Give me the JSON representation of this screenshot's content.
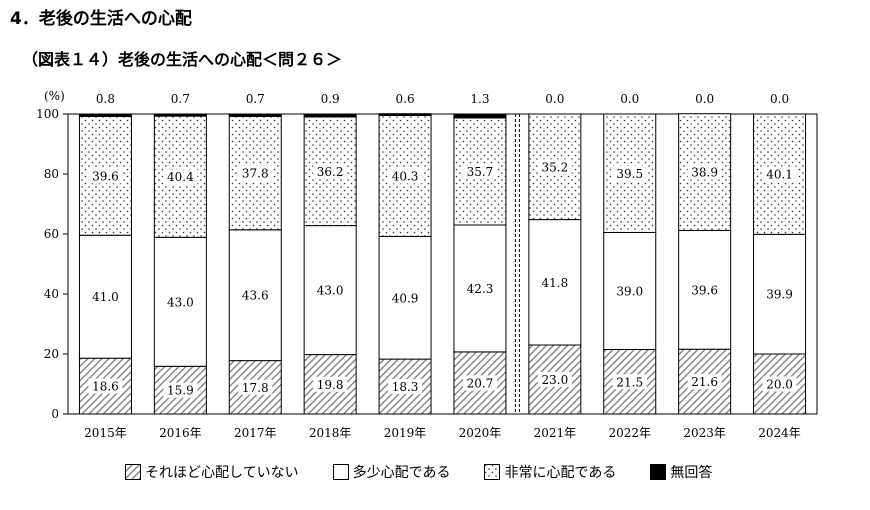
{
  "section_title": "4．老後の生活への心配",
  "chart_title": "（図表１４）老後の生活への心配＜問２６＞",
  "chart_data": {
    "type": "bar",
    "stacked": true,
    "ylabel": "(%)",
    "ylim": [
      0,
      100
    ],
    "yticks": [
      0,
      20,
      40,
      60,
      80,
      100
    ],
    "categories": [
      "2015年",
      "2016年",
      "2017年",
      "2018年",
      "2019年",
      "2020年",
      "2021年",
      "2022年",
      "2023年",
      "2024年"
    ],
    "series": [
      {
        "name": "それほど心配していない",
        "pattern": "hatch",
        "values": [
          18.6,
          15.9,
          17.8,
          19.8,
          18.3,
          20.7,
          23.0,
          21.5,
          21.6,
          20.0
        ]
      },
      {
        "name": "多少心配である",
        "pattern": "white",
        "values": [
          41.0,
          43.0,
          43.6,
          43.0,
          40.9,
          42.3,
          41.8,
          39.0,
          39.6,
          39.9
        ]
      },
      {
        "name": "非常に心配である",
        "pattern": "dots",
        "values": [
          39.6,
          40.4,
          37.8,
          36.2,
          40.3,
          35.7,
          35.2,
          39.5,
          38.9,
          40.1
        ]
      },
      {
        "name": "無回答",
        "pattern": "black",
        "values": [
          0.8,
          0.7,
          0.7,
          0.9,
          0.6,
          1.3,
          0.0,
          0.0,
          0.0,
          0.0
        ]
      }
    ],
    "separator_after_index": 5,
    "legend_position": "bottom"
  }
}
